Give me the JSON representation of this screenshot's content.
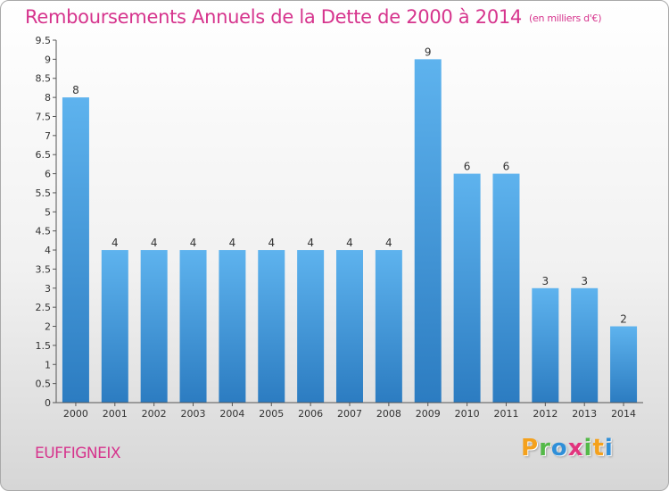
{
  "title": "Remboursements Annuels de la Dette de 2000 à 2014",
  "unit": "(en milliers d'€)",
  "commune": "EUFFIGNEIX",
  "logo_text": "Proxiti",
  "chart_data": {
    "type": "bar",
    "title": "Remboursements Annuels de la Dette de 2000 à 2014",
    "xlabel": "",
    "ylabel": "",
    "categories": [
      "2000",
      "2001",
      "2002",
      "2003",
      "2004",
      "2005",
      "2006",
      "2007",
      "2008",
      "2009",
      "2010",
      "2011",
      "2012",
      "2013",
      "2014"
    ],
    "values": [
      8,
      4,
      4,
      4,
      4,
      4,
      4,
      4,
      4,
      9,
      6,
      6,
      3,
      3,
      2
    ],
    "ylim": [
      0,
      9.5
    ],
    "yticks": [
      "0",
      "0.5",
      "1",
      "1.5",
      "2",
      "2.5",
      "3",
      "3.5",
      "4",
      "4.5",
      "5",
      "5.5",
      "6",
      "6.5",
      "7",
      "7.5",
      "8",
      "8.5",
      "9",
      "9.5"
    ],
    "grid": false,
    "colors": {
      "bar_top": "#5eb3ee",
      "bar_bottom": "#2c7cc1",
      "title": "#d6348d"
    }
  }
}
